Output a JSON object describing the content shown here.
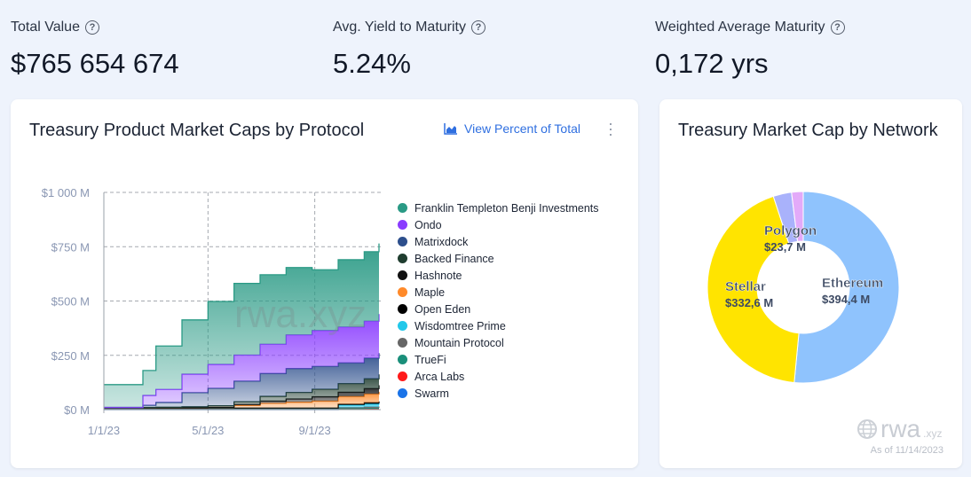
{
  "kpis": [
    {
      "label": "Total Value",
      "value": "$765 654 674"
    },
    {
      "label": "Avg. Yield to Maturity",
      "value": "5.24%"
    },
    {
      "label": "Weighted Average Maturity",
      "value": "0,172 yrs"
    }
  ],
  "left_card": {
    "title": "Treasury Product Market Caps by Protocol",
    "view_percent": "View Percent of Total",
    "watermark": "rwa.xyz"
  },
  "right_card": {
    "title": "Treasury Market Cap by Network",
    "watermark": "rwa",
    "watermark_suffix": ".xyz",
    "as_of": "As of 11/14/2023"
  },
  "chart_data": [
    {
      "type": "area",
      "stacked": true,
      "title": "Treasury Product Market Caps by Protocol",
      "ylim": [
        0,
        1000
      ],
      "ylabel": "",
      "xlabel": "",
      "yticks": [
        {
          "v": 0,
          "label": "$0 M"
        },
        {
          "v": 250,
          "label": "$250 M"
        },
        {
          "v": 500,
          "label": "$500 M"
        },
        {
          "v": 750,
          "label": "$750 M"
        },
        {
          "v": 1000,
          "label": "$1 000 M"
        }
      ],
      "xticks": [
        {
          "day": 0,
          "label": "1/1/23"
        },
        {
          "day": 120,
          "label": "5/1/23"
        },
        {
          "day": 243,
          "label": "9/1/23"
        }
      ],
      "xlim_days": [
        0,
        317
      ],
      "legend_position": "right",
      "x_days": [
        0,
        30,
        45,
        60,
        90,
        120,
        150,
        180,
        210,
        240,
        270,
        300,
        317
      ],
      "series": [
        {
          "name": "Franklin Templeton Benji Investments",
          "color": "#2a9a85",
          "values": [
            105,
            105,
            115,
            200,
            250,
            290,
            330,
            320,
            310,
            280,
            310,
            320,
            325
          ]
        },
        {
          "name": "Ondo",
          "color": "#8a3cff",
          "values": [
            0,
            0,
            45,
            60,
            85,
            110,
            120,
            135,
            155,
            165,
            165,
            170,
            180
          ]
        },
        {
          "name": "Matrixdock",
          "color": "#2d4f8c",
          "values": [
            2,
            2,
            10,
            22,
            65,
            80,
            95,
            105,
            110,
            105,
            95,
            95,
            98
          ]
        },
        {
          "name": "Backed Finance",
          "color": "#1f3d2f",
          "values": [
            0,
            0,
            2,
            3,
            5,
            8,
            12,
            22,
            30,
            35,
            40,
            45,
            50
          ]
        },
        {
          "name": "Hashnote",
          "color": "#111111",
          "values": [
            0,
            0,
            0,
            0,
            0,
            0,
            5,
            10,
            15,
            20,
            20,
            25,
            30
          ]
        },
        {
          "name": "Maple",
          "color": "#ff8a2a",
          "values": [
            0,
            0,
            0,
            0,
            0,
            2,
            12,
            22,
            27,
            32,
            35,
            40,
            45
          ]
        },
        {
          "name": "Open Eden",
          "color": "#000000",
          "values": [
            0,
            0,
            0,
            0,
            0,
            0,
            0,
            0,
            0,
            0,
            4,
            6,
            8
          ]
        },
        {
          "name": "Wisdomtree Prime",
          "color": "#22c8ea",
          "values": [
            5,
            5,
            5,
            5,
            5,
            5,
            5,
            5,
            5,
            5,
            12,
            14,
            15
          ]
        },
        {
          "name": "Mountain Protocol",
          "color": "#666666",
          "values": [
            0,
            0,
            0,
            0,
            0,
            0,
            0,
            0,
            0,
            0,
            4,
            6,
            8
          ]
        },
        {
          "name": "TrueFi",
          "color": "#1a8f7a",
          "values": [
            0,
            0,
            0,
            0,
            0,
            0,
            0,
            0,
            0,
            0,
            2,
            3,
            3
          ]
        },
        {
          "name": "Arca Labs",
          "color": "#ff1a1a",
          "values": [
            3,
            3,
            3,
            3,
            3,
            3,
            2,
            2,
            2,
            2,
            2,
            2,
            2
          ]
        },
        {
          "name": "Swarm",
          "color": "#1a73e8",
          "values": [
            0,
            0,
            0,
            0,
            0,
            0,
            0,
            0,
            0,
            0,
            1,
            1,
            1
          ]
        }
      ]
    },
    {
      "type": "pie",
      "donut": true,
      "title": "Treasury Market Cap by Network",
      "unit": "$M",
      "slices": [
        {
          "name": "Ethereum",
          "value": 394.4,
          "label": "$394,4 M",
          "color": "#8fc3fd"
        },
        {
          "name": "Stellar",
          "value": 332.6,
          "label": "$332,6 M",
          "color": "#ffe400"
        },
        {
          "name": "Polygon",
          "value": 23.7,
          "label": "$23,7 M",
          "color": "#a9b2fb"
        },
        {
          "name": "",
          "value": 15,
          "label": "",
          "color": "#e3aaf9"
        }
      ]
    }
  ]
}
